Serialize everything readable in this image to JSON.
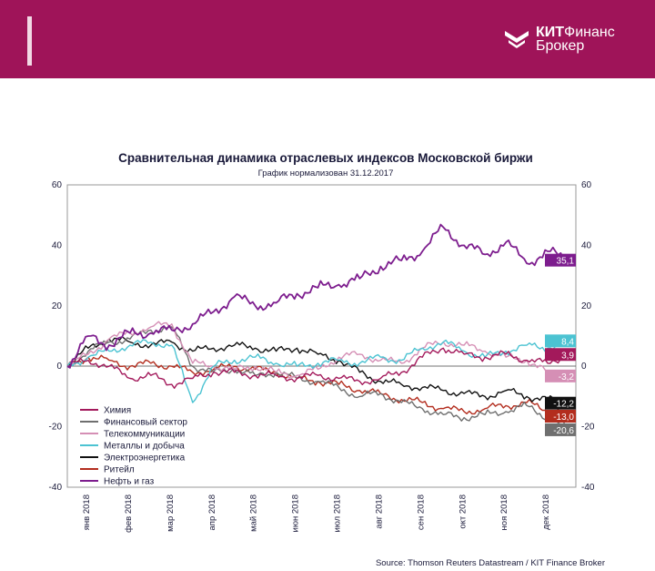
{
  "header": {
    "brand": {
      "bold": "КИТ",
      "rest": "Финанс",
      "line2": "Брокер"
    }
  },
  "source": "Source: Thomson Reuters Datastream / KIT Finance Broker",
  "chart_data": {
    "type": "line",
    "title": "Сравнительная динамика отраслевых индексов Московской биржи",
    "subtitle": "График нормализован 31.12.2017",
    "ylim": [
      -40,
      60
    ],
    "yticks": [
      -40,
      -20,
      0,
      20,
      40,
      60
    ],
    "xlim": [
      0,
      12
    ],
    "x_ticks": [
      "янв 2018",
      "фев 2018",
      "мар 2018",
      "апр 2018",
      "май 2018",
      "июн 2018",
      "июл 2018",
      "авг 2018",
      "сен 2018",
      "окт 2018",
      "ноя 2018",
      "дек 2018"
    ],
    "grid": false,
    "legend_position": "bottom-left",
    "series": [
      {
        "name": "Химия",
        "color": "#a3195b",
        "end_label": "3,9",
        "x": [
          0,
          0.5,
          1,
          1.5,
          2,
          2.5,
          3,
          3.5,
          4,
          4.5,
          5,
          5.5,
          6,
          6.5,
          7,
          7.5,
          8,
          8.5,
          9,
          9.5,
          10,
          10.5,
          11,
          11.5,
          12
        ],
        "y": [
          0,
          2,
          0,
          -4,
          -3,
          -6,
          -4,
          -2,
          -2,
          -3,
          -3,
          -4,
          -3,
          -4,
          -5,
          -4,
          -2,
          3,
          6,
          4,
          3,
          4,
          2,
          1,
          3.9
        ]
      },
      {
        "name": "Финансовый сектор",
        "color": "#6f6f6f",
        "end_label": "-20,6",
        "x": [
          0,
          0.5,
          1,
          1.5,
          2,
          2.5,
          3,
          3.5,
          4,
          4.5,
          5,
          5.5,
          6,
          6.5,
          7,
          7.5,
          8,
          8.5,
          9,
          9.5,
          10,
          10.5,
          11,
          11.5,
          12
        ],
        "y": [
          0,
          5,
          8,
          9,
          12,
          13,
          0,
          -2,
          -1,
          -3,
          -2,
          -4,
          -5,
          -7,
          -10,
          -9,
          -12,
          -14,
          -16,
          -17,
          -16,
          -15,
          -13,
          -17,
          -20.6
        ]
      },
      {
        "name": "Телекоммуникации",
        "color": "#d58fb5",
        "end_label": "-3,2",
        "x": [
          0,
          0.5,
          1,
          1.5,
          2,
          2.5,
          3,
          3.5,
          4,
          4.5,
          5,
          5.5,
          6,
          6.5,
          7,
          7.5,
          8,
          8.5,
          9,
          9.5,
          10,
          10.5,
          11,
          11.5,
          12
        ],
        "y": [
          0,
          4,
          9,
          11,
          13,
          14,
          1,
          0,
          -1,
          0,
          -2,
          -3,
          -1,
          3,
          4,
          2,
          1,
          6,
          8,
          7,
          5,
          3,
          2,
          -2,
          -3.2
        ]
      },
      {
        "name": "Металлы и добыча",
        "color": "#4cc3d2",
        "end_label": "8,4",
        "x": [
          0,
          0.5,
          1,
          1.5,
          2,
          2.5,
          3,
          3.5,
          4,
          4.5,
          5,
          5.5,
          6,
          6.5,
          7,
          7.5,
          8,
          8.5,
          9,
          9.5,
          10,
          10.5,
          11,
          11.5,
          12
        ],
        "y": [
          0,
          3,
          5,
          7,
          8,
          7,
          -12,
          0,
          2,
          3,
          1,
          0,
          1,
          2,
          1,
          3,
          2,
          6,
          8,
          5,
          3,
          5,
          7,
          6,
          8.4
        ]
      },
      {
        "name": "Электроэнергетика",
        "color": "#111111",
        "end_label": "-12,2",
        "x": [
          0,
          0.5,
          1,
          1.5,
          2,
          2.5,
          3,
          3.5,
          4,
          4.5,
          5,
          5.5,
          6,
          6.5,
          7,
          7.5,
          8,
          8.5,
          9,
          9.5,
          10,
          10.5,
          11,
          11.5,
          12
        ],
        "y": [
          0,
          6,
          9,
          8,
          7,
          8,
          5,
          6,
          7,
          6,
          5,
          6,
          4,
          2,
          -2,
          -5,
          -6,
          -7,
          -8,
          -9,
          -10,
          -8,
          -10,
          -11,
          -12.2
        ]
      },
      {
        "name": "Ритейл",
        "color": "#b32d1e",
        "end_label": "-13,0",
        "x": [
          0,
          0.5,
          1,
          1.5,
          2,
          2.5,
          3,
          3.5,
          4,
          4.5,
          5,
          5.5,
          6,
          6.5,
          7,
          7.5,
          8,
          8.5,
          9,
          9.5,
          10,
          10.5,
          11,
          11.5,
          12
        ],
        "y": [
          0,
          3,
          2,
          0,
          1,
          0,
          -2,
          -1,
          0,
          -1,
          -2,
          -4,
          -5,
          -6,
          -8,
          -9,
          -11,
          -12,
          -14,
          -15,
          -14,
          -13,
          -12,
          -15,
          -13.0
        ]
      },
      {
        "name": "Нефть и газ",
        "color": "#7d1d8e",
        "end_label": "35,1",
        "x": [
          0,
          0.5,
          1,
          1.5,
          2,
          2.5,
          3,
          3.5,
          4,
          4.5,
          5,
          5.5,
          6,
          6.5,
          7,
          7.5,
          8,
          8.5,
          9,
          9.5,
          10,
          10.5,
          11,
          11.5,
          12
        ],
        "y": [
          0,
          10,
          7,
          11,
          11,
          12,
          14,
          18,
          23,
          20,
          21,
          24,
          26,
          27,
          29,
          33,
          35,
          38,
          46,
          40,
          37,
          41,
          34,
          38,
          35.1
        ]
      }
    ]
  }
}
